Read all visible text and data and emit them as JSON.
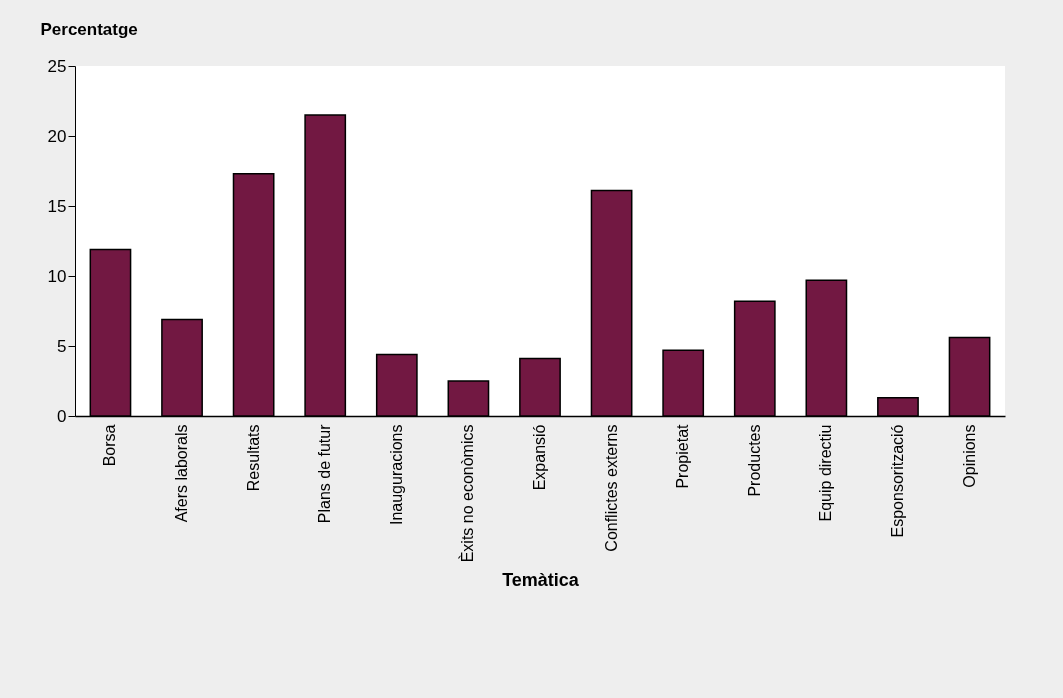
{
  "chart_data": {
    "type": "bar",
    "ylabel": "Percentatge",
    "xlabel": "Temàtica",
    "categories": [
      "Borsa",
      "Afers laborals",
      "Resultats",
      "Plans de futur",
      "Inauguracions",
      "Èxits no econòmics",
      "Expansió",
      "Conflictes externs",
      "Propietat",
      "Productes",
      "Equip directiu",
      "Esponsorització",
      "Opinions"
    ],
    "values": [
      11.9,
      6.9,
      17.3,
      21.5,
      4.4,
      2.5,
      4.1,
      16.1,
      4.7,
      8.2,
      9.7,
      1.3,
      5.6
    ],
    "color": "#721842",
    "ylim": [
      0,
      25
    ],
    "yticks": [
      0,
      5,
      10,
      15,
      20,
      25
    ],
    "grid": false
  }
}
